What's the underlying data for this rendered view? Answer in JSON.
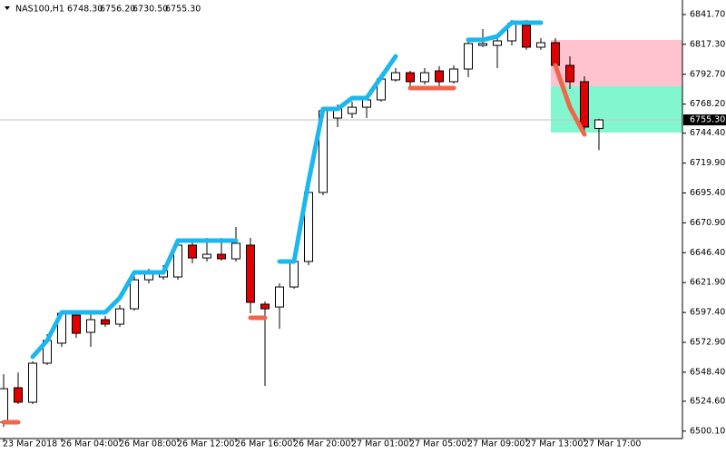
{
  "chart_data": {
    "type": "candlestick",
    "title": "NAS100,H1",
    "header_ohlc": [
      "6748.30",
      "6756.20",
      "6730.50",
      "6755.30"
    ],
    "categories": [
      "23 Mar 2018",
      null,
      null,
      null,
      "26 Mar 04:00",
      null,
      null,
      null,
      "26 Mar 08:00",
      null,
      null,
      null,
      "26 Mar 12:00",
      null,
      null,
      null,
      "26 Mar 16:00",
      null,
      null,
      null,
      "26 Mar 20:00",
      null,
      null,
      null,
      "27 Mar 01:00",
      null,
      null,
      null,
      "27 Mar 05:00",
      null,
      null,
      null,
      "27 Mar 09:00",
      null,
      null,
      null,
      "27 Mar 13:00",
      null,
      null,
      null,
      "27 Mar 17:00",
      null
    ],
    "open": [
      6507.4,
      6535.7,
      6523.8,
      6555.8,
      6572.2,
      6595.2,
      6581.1,
      6591.5,
      6587.8,
      6600.4,
      6624.2,
      6626.5,
      6626.5,
      6652.6,
      6642.1,
      6645.1,
      6641.4,
      6652.6,
      6604.2,
      6601.9,
      6618.3,
      6639.2,
      6695.8,
      6756.8,
      6760.5,
      6765.7,
      6771.7,
      6788.1,
      6794.0,
      6786.6,
      6795.5,
      6786.6,
      6797.0,
      6816.4,
      6816.4,
      6820.1,
      6832.8,
      6814.9,
      6818.6,
      6800.0,
      6786.6,
      6748.3
    ],
    "high": [
      6546.8,
      6548.3,
      6557.3,
      6579.6,
      6598.9,
      6598.9,
      6596.0,
      6594.5,
      6603.4,
      6628.0,
      6633.2,
      6636.2,
      6657.0,
      6657.0,
      6658.5,
      6658.5,
      6667.5,
      6658.5,
      6606.4,
      6621.3,
      6641.4,
      6698.7,
      6765.7,
      6768.0,
      6770.2,
      6774.7,
      6792.5,
      6797.8,
      6795.5,
      6797.8,
      6799.3,
      6800.0,
      6822.3,
      6829.8,
      6823.8,
      6837.2,
      6837.2,
      6822.3,
      6822.3,
      6807.4,
      6791.1,
      6756.2
    ],
    "low": [
      6503.6,
      6522.3,
      6522.3,
      6554.3,
      6569.2,
      6576.6,
      6569.2,
      6585.5,
      6585.5,
      6598.9,
      6621.3,
      6624.2,
      6624.2,
      6637.7,
      6639.2,
      6639.9,
      6639.2,
      6596.7,
      6537.2,
      6584.0,
      6616.8,
      6636.2,
      6693.5,
      6749.4,
      6756.8,
      6756.8,
      6770.2,
      6786.6,
      6782.9,
      6784.4,
      6782.9,
      6785.1,
      6790.3,
      6814.9,
      6797.8,
      6816.4,
      6812.7,
      6812.7,
      6795.5,
      6780.6,
      6745.6,
      6730.5
    ],
    "close": [
      6534.9,
      6523.8,
      6555.8,
      6574.4,
      6596.7,
      6580.3,
      6591.5,
      6587.8,
      6600.4,
      6624.2,
      6630.2,
      6631.7,
      6652.6,
      6642.1,
      6645.1,
      6641.4,
      6654.1,
      6605.7,
      6600.4,
      6618.3,
      6639.2,
      6695.8,
      6762.8,
      6764.3,
      6765.7,
      6771.7,
      6788.8,
      6794.0,
      6786.6,
      6794.0,
      6786.6,
      6797.0,
      6817.9,
      6817.9,
      6820.1,
      6834.3,
      6814.9,
      6818.6,
      6800.0,
      6786.6,
      6749.4,
      6755.3
    ],
    "up_color": "#ffffff",
    "down_color": "#e00000",
    "indicators": [
      {
        "color": "#1ab8ee",
        "values": [
          null,
          null,
          6561.0,
          6574.4,
          6597.5,
          6597.5,
          6597.5,
          6597.5,
          6609.4,
          6630.2,
          6630.2,
          6630.2,
          6656.3,
          6656.3,
          6656.3,
          6656.3,
          6656.3,
          null,
          null,
          6639.2,
          6639.2,
          6704.7,
          6764.3,
          6764.3,
          6773.2,
          6773.2,
          6790.3,
          6807.4,
          null,
          null,
          null,
          null,
          6820.9,
          6820.9,
          6823.8,
          6835.0,
          6835.0,
          6835.0,
          null,
          null,
          null,
          null
        ]
      },
      {
        "color": "#f0664a",
        "values": [
          6507.4,
          6507.4,
          null,
          null,
          null,
          null,
          null,
          null,
          null,
          null,
          null,
          null,
          null,
          null,
          null,
          null,
          null,
          6593.0,
          6593.0,
          null,
          null,
          null,
          null,
          null,
          null,
          null,
          null,
          null,
          6781.4,
          6781.4,
          6781.4,
          6781.4,
          null,
          null,
          null,
          null,
          null,
          null,
          6800.0,
          6765.7,
          6743.4,
          null
        ]
      }
    ],
    "zones": [
      {
        "color": "#ffc2cf",
        "from": 6782.9,
        "to": 6820.9
      },
      {
        "color": "#82f7cf",
        "from": 6744.9,
        "to": 6782.9
      }
    ],
    "current_price": {
      "value": 6755.3,
      "label": "6755.30"
    },
    "ylim": [
      6494.0,
      6853.6
    ],
    "yticks": [
      {
        "value": 6841.7,
        "label": "6841.70"
      },
      {
        "value": 6817.3,
        "label": "6817.30"
      },
      {
        "value": 6792.7,
        "label": "6792.70"
      },
      {
        "value": 6768.2,
        "label": "6768.20"
      },
      {
        "value": 6744.4,
        "label": "6744.40"
      },
      {
        "value": 6719.9,
        "label": "6719.90"
      },
      {
        "value": 6695.4,
        "label": "6695.40"
      },
      {
        "value": 6670.9,
        "label": "6670.90"
      },
      {
        "value": 6646.4,
        "label": "6646.40"
      },
      {
        "value": 6621.9,
        "label": "6621.90"
      },
      {
        "value": 6597.4,
        "label": "6597.40"
      },
      {
        "value": 6572.9,
        "label": "6572.90"
      },
      {
        "value": 6548.4,
        "label": "6548.40"
      },
      {
        "value": 6524.6,
        "label": "6524.60"
      },
      {
        "value": 6500.1,
        "label": "6500.10"
      }
    ]
  }
}
